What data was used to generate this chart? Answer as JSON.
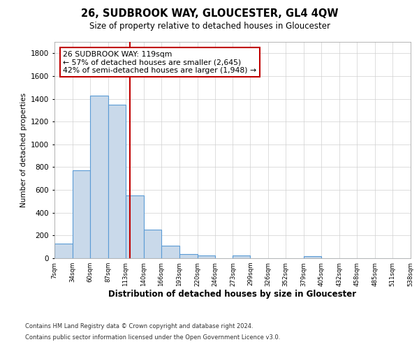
{
  "title": "26, SUDBROOK WAY, GLOUCESTER, GL4 4QW",
  "subtitle": "Size of property relative to detached houses in Gloucester",
  "xlabel": "Distribution of detached houses by size in Gloucester",
  "ylabel": "Number of detached properties",
  "footnote1": "Contains HM Land Registry data © Crown copyright and database right 2024.",
  "footnote2": "Contains public sector information licensed under the Open Government Licence v3.0.",
  "annotation_title": "26 SUDBROOK WAY: 119sqm",
  "annotation_line1": "← 57% of detached houses are smaller (2,645)",
  "annotation_line2": "42% of semi-detached houses are larger (1,948) →",
  "property_size": 119,
  "bar_edges": [
    7,
    34,
    60,
    87,
    113,
    140,
    166,
    193,
    220,
    246,
    273,
    299,
    326,
    352,
    379,
    405,
    432,
    458,
    485,
    511,
    538
  ],
  "bar_heights": [
    130,
    775,
    1430,
    1350,
    550,
    250,
    110,
    35,
    25,
    0,
    25,
    0,
    0,
    0,
    20,
    0,
    0,
    0,
    0,
    0
  ],
  "bar_color": "#c9d9ea",
  "bar_edge_color": "#5b9bd5",
  "vline_color": "#c00000",
  "vline_x": 119,
  "annotation_box_color": "#c00000",
  "background_color": "#ffffff",
  "grid_color": "#d0d0d0",
  "ylim": [
    0,
    1900
  ],
  "yticks": [
    0,
    200,
    400,
    600,
    800,
    1000,
    1200,
    1400,
    1600,
    1800
  ],
  "title_fontsize": 10.5,
  "subtitle_fontsize": 8.5,
  "ylabel_fontsize": 7.5,
  "xlabel_fontsize": 8.5,
  "ytick_fontsize": 7.5,
  "xtick_fontsize": 6.2,
  "annotation_fontsize": 7.8,
  "footnote_fontsize": 6.0
}
